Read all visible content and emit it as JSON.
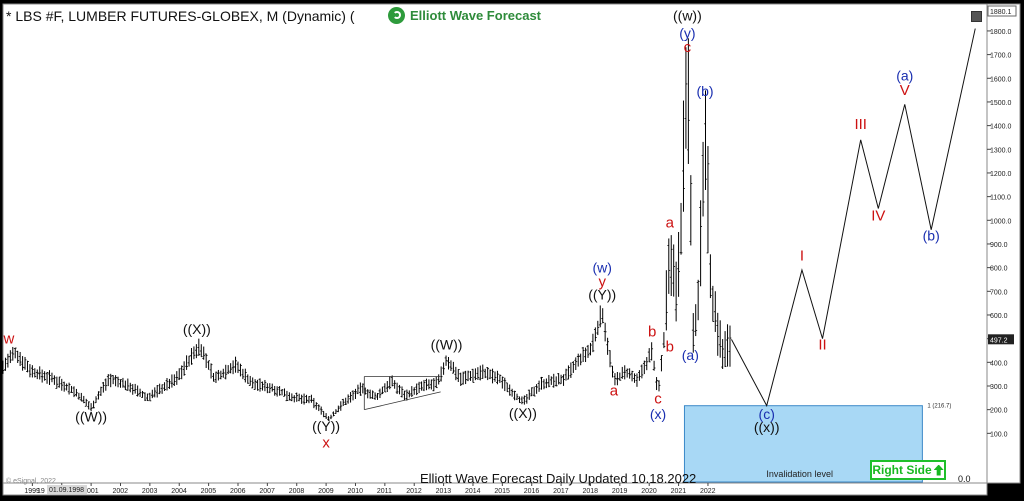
{
  "header": {
    "title": "* LBS #F, LUMBER FUTURES-GLOBEX, M (Dynamic) (",
    "brand": "Elliott Wave Forecast",
    "icon": "settings-icon"
  },
  "footer": {
    "updated": "Elliott Wave Forecast Daily Updated 10.18.2022",
    "copyright": "© eSignal, 2022",
    "right_side": "Right Side",
    "right_side_icon": "arrow-up-icon",
    "zero": "0.0"
  },
  "colors": {
    "background": "#ffffff",
    "bars": "#000000",
    "red_label": "#cc1111",
    "blue_label": "#1a2fb0",
    "black_label": "#111111",
    "invalidation_box": "#a8d8f5",
    "right_side_green": "#1fbf2a"
  },
  "chart_data": {
    "type": "ohlc",
    "title": "* LBS #F, LUMBER FUTURES-GLOBEX, M (Dynamic)",
    "x_axis": {
      "labels": [
        "1999",
        "2000",
        "2001",
        "2002",
        "2003",
        "2004",
        "2005",
        "2006",
        "2007",
        "2008",
        "2009",
        "2010",
        "2011",
        "2012",
        "2013",
        "2014",
        "2015",
        "2016",
        "2017",
        "2018",
        "2019",
        "2020",
        "2021",
        "2022"
      ],
      "partial_label": "19",
      "date_box": "01.09.1998"
    },
    "y_axis": {
      "min": 0,
      "max": 1880,
      "ticks": [
        100,
        200,
        300,
        400,
        500,
        600,
        700,
        800,
        900,
        1000,
        1100,
        1200,
        1300,
        1400,
        1500,
        1600,
        1700,
        1800
      ],
      "tick_labels": [
        "100.0",
        "200.0",
        "300.0",
        "400.0",
        "500.0",
        "600.0",
        "700.0",
        "800.0",
        "900.0",
        "1000.0",
        "1100.0",
        "1200.0",
        "1300.0",
        "1400.0",
        "1500.0",
        "1600.0",
        "1700.0",
        "1800.0"
      ],
      "top_label": "1880.1",
      "current_price": 497.2,
      "current_price_label": "497.2"
    },
    "price_path": [
      [
        1998.0,
        380
      ],
      [
        1998.4,
        440
      ],
      [
        1999.0,
        360
      ],
      [
        1999.7,
        330
      ],
      [
        2000.4,
        280
      ],
      [
        2001.0,
        210
      ],
      [
        2001.6,
        330
      ],
      [
        2002.3,
        300
      ],
      [
        2002.9,
        250
      ],
      [
        2003.4,
        290
      ],
      [
        2003.9,
        330
      ],
      [
        2004.4,
        420
      ],
      [
        2004.7,
        470
      ],
      [
        2005.2,
        330
      ],
      [
        2005.9,
        390
      ],
      [
        2006.5,
        310
      ],
      [
        2007.2,
        290
      ],
      [
        2007.9,
        250
      ],
      [
        2008.5,
        240
      ],
      [
        2009.1,
        160
      ],
      [
        2009.6,
        230
      ],
      [
        2010.2,
        290
      ],
      [
        2010.7,
        250
      ],
      [
        2011.2,
        320
      ],
      [
        2011.7,
        260
      ],
      [
        2012.3,
        300
      ],
      [
        2012.8,
        310
      ],
      [
        2013.1,
        410
      ],
      [
        2013.6,
        330
      ],
      [
        2014.3,
        360
      ],
      [
        2014.9,
        330
      ],
      [
        2015.7,
        230
      ],
      [
        2016.3,
        310
      ],
      [
        2017.1,
        330
      ],
      [
        2017.7,
        420
      ],
      [
        2018.0,
        450
      ],
      [
        2018.4,
        610
      ],
      [
        2018.8,
        320
      ],
      [
        2019.2,
        360
      ],
      [
        2019.6,
        320
      ],
      [
        2020.1,
        450
      ],
      [
        2020.3,
        260
      ],
      [
        2020.5,
        500
      ],
      [
        2020.7,
        900
      ],
      [
        2020.9,
        700
      ],
      [
        2021.1,
        1000
      ],
      [
        2021.3,
        1710
      ],
      [
        2021.5,
        500
      ],
      [
        2021.7,
        700
      ],
      [
        2021.9,
        1460
      ],
      [
        2022.1,
        700
      ],
      [
        2022.5,
        430
      ],
      [
        2022.8,
        497
      ]
    ],
    "projection": [
      [
        2022.8,
        497
      ],
      [
        2024.0,
        217
      ],
      [
        2025.2,
        790
      ],
      [
        2025.9,
        500
      ],
      [
        2027.2,
        1340
      ],
      [
        2027.8,
        1050
      ],
      [
        2028.7,
        1490
      ],
      [
        2029.6,
        960
      ],
      [
        2031.1,
        1810
      ]
    ],
    "invalidation": {
      "level": 216.7,
      "label": "1 (216.7)",
      "text": "Invalidation level"
    },
    "triangle": {
      "x": [
        2010.3,
        2012.9
      ],
      "upper": [
        340,
        340
      ],
      "lower": [
        200,
        275
      ]
    },
    "annotations": [
      {
        "text": "w",
        "x": 1998.2,
        "y": 480,
        "color": "red"
      },
      {
        "text": "((W))",
        "x": 2001.0,
        "y": 150,
        "color": "black"
      },
      {
        "text": "((X))",
        "x": 2004.6,
        "y": 520,
        "color": "black"
      },
      {
        "text": "((Y))",
        "x": 2009.0,
        "y": 110,
        "color": "black"
      },
      {
        "text": "x",
        "x": 2009.0,
        "y": 40,
        "color": "red"
      },
      {
        "text": "((W))",
        "x": 2013.1,
        "y": 455,
        "color": "black"
      },
      {
        "text": "((X))",
        "x": 2015.7,
        "y": 165,
        "color": "black"
      },
      {
        "text": "(w)",
        "x": 2018.4,
        "y": 780,
        "color": "blue"
      },
      {
        "text": "y",
        "x": 2018.4,
        "y": 720,
        "color": "red"
      },
      {
        "text": "((Y))",
        "x": 2018.4,
        "y": 665,
        "color": "black"
      },
      {
        "text": "a",
        "x": 2018.8,
        "y": 260,
        "color": "red"
      },
      {
        "text": "b",
        "x": 2020.1,
        "y": 510,
        "color": "red"
      },
      {
        "text": "b",
        "x": 2020.7,
        "y": 445,
        "color": "red"
      },
      {
        "text": "c",
        "x": 2020.3,
        "y": 225,
        "color": "red"
      },
      {
        "text": "(x)",
        "x": 2020.3,
        "y": 160,
        "color": "blue"
      },
      {
        "text": "a",
        "x": 2020.7,
        "y": 970,
        "color": "red"
      },
      {
        "text": "((w))",
        "x": 2021.3,
        "y": 1845,
        "color": "black"
      },
      {
        "text": "(y)",
        "x": 2021.3,
        "y": 1770,
        "color": "blue"
      },
      {
        "text": "c",
        "x": 2021.3,
        "y": 1710,
        "color": "red"
      },
      {
        "text": "(b)",
        "x": 2021.9,
        "y": 1525,
        "color": "blue"
      },
      {
        "text": "(a)",
        "x": 2021.4,
        "y": 410,
        "color": "blue"
      },
      {
        "text": "(c)",
        "x": 2024.0,
        "y": 160,
        "color": "blue"
      },
      {
        "text": "((x))",
        "x": 2024.0,
        "y": 105,
        "color": "black"
      },
      {
        "text": "I",
        "x": 2025.2,
        "y": 830,
        "color": "red"
      },
      {
        "text": "II",
        "x": 2025.9,
        "y": 455,
        "color": "red"
      },
      {
        "text": "III",
        "x": 2027.2,
        "y": 1385,
        "color": "red"
      },
      {
        "text": "IV",
        "x": 2027.8,
        "y": 1000,
        "color": "red"
      },
      {
        "text": "(a)",
        "x": 2028.7,
        "y": 1590,
        "color": "blue"
      },
      {
        "text": "V",
        "x": 2028.7,
        "y": 1530,
        "color": "red"
      },
      {
        "text": "(b)",
        "x": 2029.6,
        "y": 915,
        "color": "blue"
      }
    ]
  }
}
